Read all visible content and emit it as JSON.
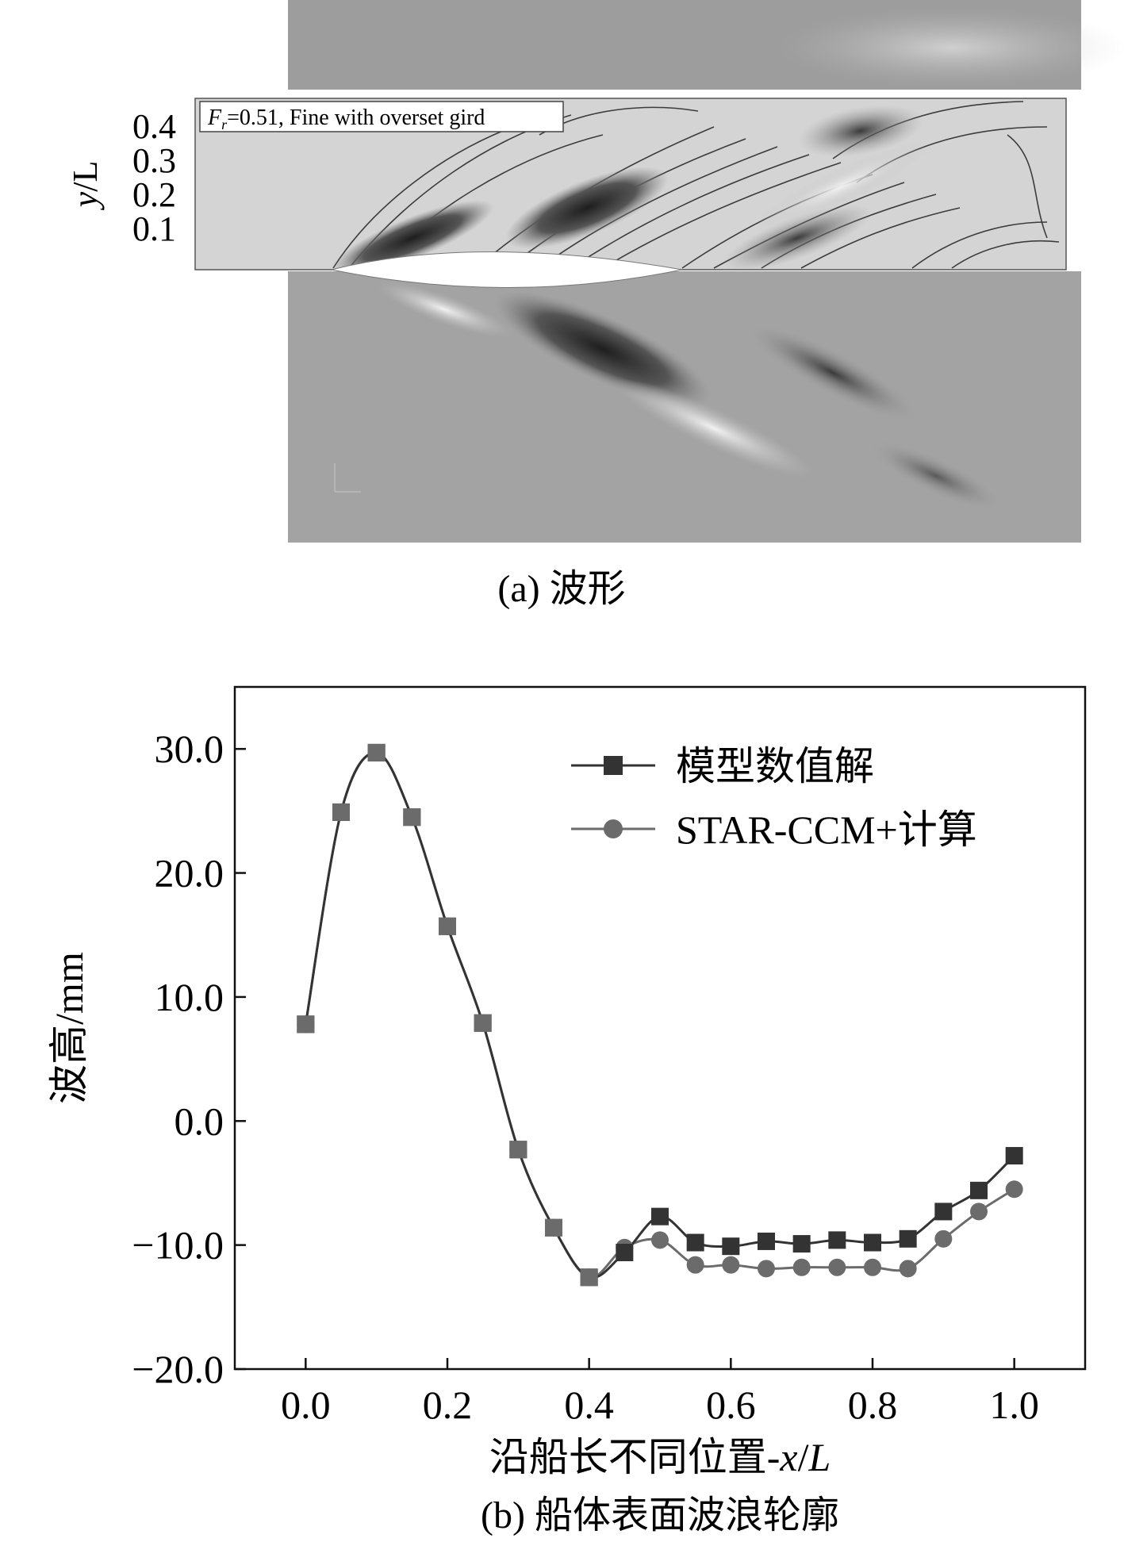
{
  "figure_a": {
    "inset_label": {
      "symbol": "F",
      "subscript": "r",
      "text": "=0.51, Fine with overset gird"
    },
    "y_axis": {
      "label_italic": "y",
      "label_rest": "/L",
      "ticks": [
        "0.4",
        "0.3",
        "0.2",
        "0.1"
      ]
    },
    "caption": "(a) 波形"
  },
  "figure_b": {
    "caption": "(b) 船体表面波浪轮廓"
  },
  "chart_data": {
    "type": "line",
    "xlabel_text": "沿船长不同位置-",
    "xlabel_italic": "x",
    "xlabel_slash": "/",
    "xlabel_italic2": "L",
    "ylabel": "波高/mm",
    "xlim": [
      -0.1,
      1.1
    ],
    "ylim": [
      -20,
      35
    ],
    "x_ticks": [
      "0.0",
      "0.2",
      "0.4",
      "0.6",
      "0.8",
      "1.0"
    ],
    "y_ticks": [
      "30.0",
      "20.0",
      "10.0",
      "0.0",
      "−10.0",
      "−20.0"
    ],
    "x": [
      0.0,
      0.05,
      0.1,
      0.15,
      0.2,
      0.25,
      0.3,
      0.35,
      0.4,
      0.45,
      0.5,
      0.55,
      0.6,
      0.65,
      0.7,
      0.75,
      0.8,
      0.85,
      0.9,
      0.95,
      1.0
    ],
    "series": [
      {
        "name": "模型数值解",
        "marker": "square",
        "color": "#333333",
        "values": [
          7.8,
          24.9,
          29.7,
          24.5,
          15.7,
          7.9,
          -2.3,
          -8.6,
          -12.6,
          -10.6,
          -7.7,
          -9.8,
          -10.1,
          -9.7,
          -9.9,
          -9.6,
          -9.8,
          -9.5,
          -7.3,
          -5.6,
          -2.8
        ]
      },
      {
        "name": "STAR-CCM+计算",
        "marker": "circle",
        "color": "#6b6b6b",
        "values": [
          7.8,
          24.9,
          29.7,
          24.5,
          15.7,
          7.9,
          -2.3,
          -8.6,
          -12.6,
          -10.2,
          -9.6,
          -11.6,
          -11.6,
          -11.9,
          -11.8,
          -11.8,
          -11.8,
          -11.9,
          -9.5,
          -7.3,
          -5.5
        ]
      }
    ],
    "legend_position": "top-right",
    "grid": false
  }
}
